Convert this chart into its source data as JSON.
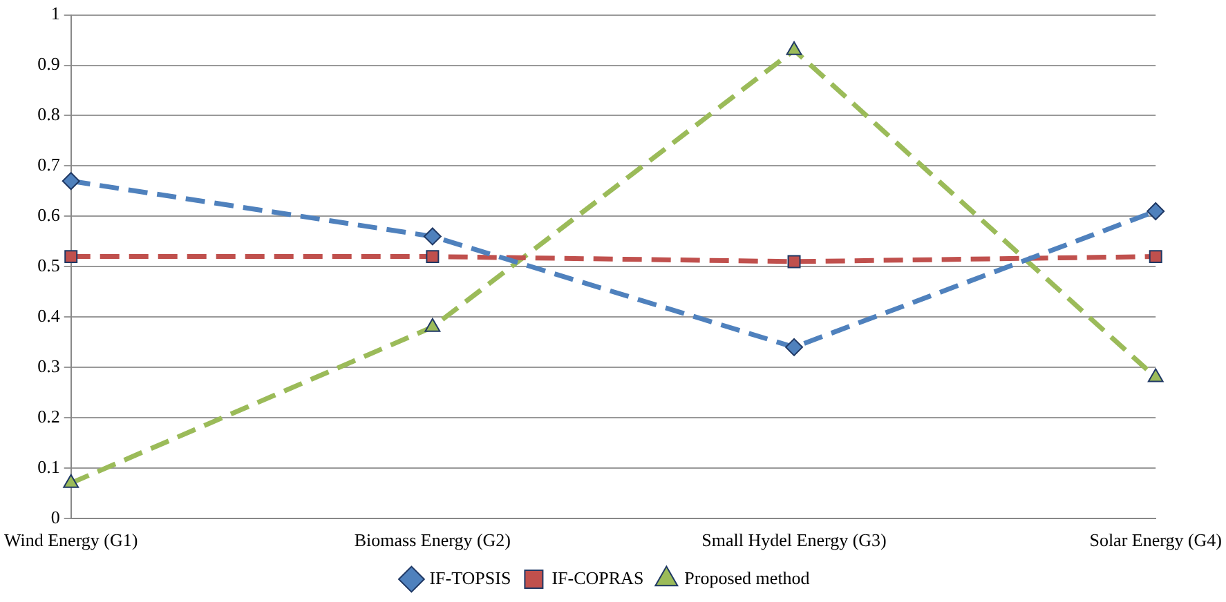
{
  "chart_data": {
    "type": "line",
    "categories": [
      "Wind Energy (G1)",
      "Biomass Energy (G2)",
      "Small Hydel Energy (G3)",
      "Solar Energy (G4)"
    ],
    "series": [
      {
        "name": "IF-TOPSIS",
        "color": "#4f81bd",
        "marker": "diamond",
        "values": [
          0.67,
          0.56,
          0.34,
          0.61
        ]
      },
      {
        "name": "IF-COPRAS",
        "color": "#c0504d",
        "marker": "square",
        "values": [
          0.52,
          0.52,
          0.51,
          0.52
        ]
      },
      {
        "name": "Proposed method",
        "color": "#9bbb59",
        "marker": "triangle",
        "values": [
          0.07,
          0.38,
          0.93,
          0.28
        ]
      }
    ],
    "ylim": [
      0,
      1
    ],
    "yticks": [
      0,
      0.1,
      0.2,
      0.3,
      0.4,
      0.5,
      0.6,
      0.7,
      0.8,
      0.9,
      1
    ],
    "grid": "y",
    "legend": "bottom",
    "line_style": "dashed"
  }
}
